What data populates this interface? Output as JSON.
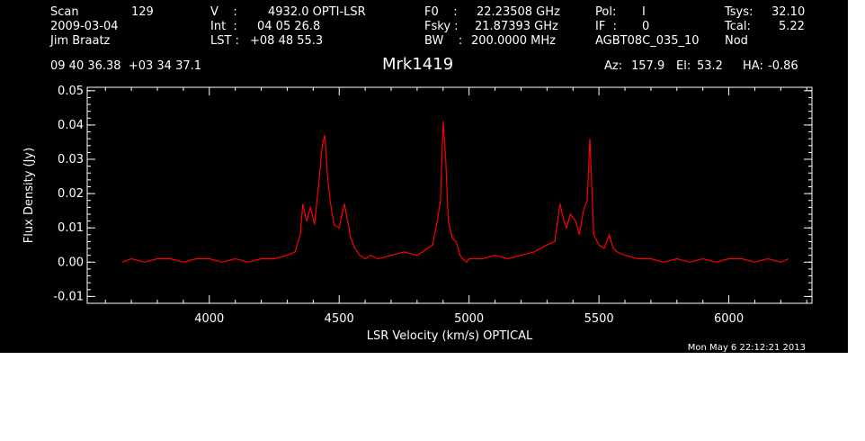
{
  "header": {
    "scan_label": "Scan",
    "scan_value": "129",
    "date": "2009-03-04",
    "observer": "Jim Braatz",
    "v_label": "V    :",
    "v_value": "4932.0 OPTI-LSR",
    "int_label": "Int  :",
    "int_value": "04 05 26.8",
    "lst_label": "LST :",
    "lst_value": "+08 48 55.3",
    "f0_label": "F0    :",
    "f0_value": "22.23508 GHz",
    "fsky_label": "Fsky :",
    "fsky_value": "21.87393 GHz",
    "bw_label": "BW    :",
    "bw_value": "200.0000 MHz",
    "pol_label": "Pol:",
    "pol_value": "I",
    "if_label": "IF  :",
    "if_value": "0",
    "project": "AGBT08C_035_10",
    "tsys_label": "Tsys:",
    "tsys_value": "32.10",
    "tcal_label": "Tcal:",
    "tcal_value": "5.22",
    "proc": "Nod",
    "coords": "09 40 36.38  +03 34 37.1",
    "source": "Mrk1419",
    "az_label": "Az:",
    "az_value": "157.9",
    "el_label": "El:",
    "el_value": "53.2",
    "ha_label": "HA:",
    "ha_value": "-0.86"
  },
  "footer_timestamp": "Mon May  6 22:12:21 2013",
  "colors": {
    "background": "#000000",
    "axes": "#ffffff",
    "series": "#ff0000"
  },
  "chart_data": {
    "type": "line",
    "title": "Mrk1419",
    "xlabel": "LSR Velocity (km/s) OPTICAL",
    "ylabel": "Flux Density (Jy)",
    "xlim": [
      3530,
      6320
    ],
    "ylim": [
      -0.012,
      0.051
    ],
    "xticks": [
      4000,
      4500,
      5000,
      5500,
      6000
    ],
    "yticks": [
      -0.01,
      0.0,
      0.01,
      0.02,
      0.03,
      0.04,
      0.05
    ],
    "ytick_labels": [
      "-0.01",
      "0.00",
      "0.01",
      "0.02",
      "0.03",
      "0.04",
      "0.05"
    ],
    "grid": false,
    "series": [
      {
        "color": "#ff0000",
        "x": [
          3665,
          3700,
          3750,
          3800,
          3850,
          3900,
          3950,
          4000,
          4050,
          4100,
          4150,
          4200,
          4250,
          4300,
          4330,
          4350,
          4360,
          4375,
          4390,
          4405,
          4420,
          4435,
          4445,
          4455,
          4465,
          4480,
          4500,
          4520,
          4545,
          4560,
          4580,
          4600,
          4620,
          4650,
          4700,
          4750,
          4800,
          4840,
          4860,
          4880,
          4890,
          4900,
          4910,
          4920,
          4935,
          4950,
          4965,
          4975,
          4990,
          5000,
          5050,
          5100,
          5150,
          5200,
          5250,
          5300,
          5330,
          5350,
          5365,
          5375,
          5390,
          5410,
          5425,
          5440,
          5455,
          5465,
          5480,
          5500,
          5520,
          5540,
          5555,
          5570,
          5600,
          5650,
          5700,
          5750,
          5800,
          5850,
          5900,
          5950,
          6000,
          6050,
          6100,
          6150,
          6200,
          6230
        ],
        "y": [
          0.0,
          0.001,
          0.0,
          0.001,
          0.001,
          0.0,
          0.001,
          0.001,
          0.0,
          0.001,
          0.0,
          0.001,
          0.001,
          0.002,
          0.003,
          0.008,
          0.017,
          0.012,
          0.016,
          0.011,
          0.022,
          0.034,
          0.037,
          0.025,
          0.018,
          0.011,
          0.01,
          0.017,
          0.007,
          0.004,
          0.002,
          0.001,
          0.002,
          0.001,
          0.002,
          0.003,
          0.002,
          0.004,
          0.005,
          0.013,
          0.018,
          0.041,
          0.03,
          0.012,
          0.007,
          0.006,
          0.002,
          0.001,
          0.0,
          0.001,
          0.001,
          0.002,
          0.001,
          0.002,
          0.003,
          0.005,
          0.006,
          0.017,
          0.012,
          0.01,
          0.014,
          0.012,
          0.008,
          0.015,
          0.018,
          0.036,
          0.008,
          0.005,
          0.004,
          0.008,
          0.004,
          0.003,
          0.002,
          0.001,
          0.001,
          0.0,
          0.001,
          0.0,
          0.001,
          0.0,
          0.001,
          0.001,
          0.0,
          0.001,
          0.0,
          0.001
        ]
      }
    ]
  }
}
